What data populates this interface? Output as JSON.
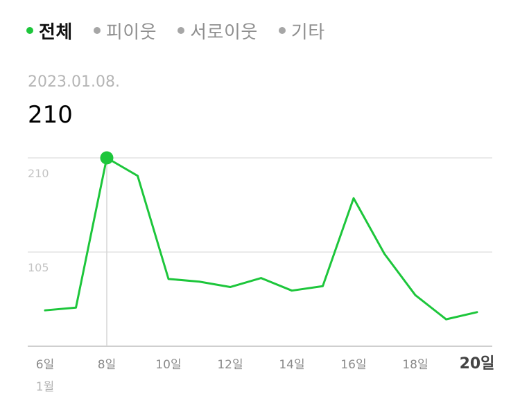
{
  "colors": {
    "accent": "#1dc63b",
    "inactive_dot": "#a6a6a6",
    "gridline": "#e4e4e4",
    "axis": "#cfcfcf",
    "tick_text": "#8a8a8a",
    "y_tick_text": "#c4c4c4",
    "date_text": "#b5b5b5"
  },
  "filters": [
    {
      "label": "전체",
      "active": true
    },
    {
      "label": "피이웃",
      "active": false
    },
    {
      "label": "서로이웃",
      "active": false
    },
    {
      "label": "기타",
      "active": false
    }
  ],
  "selection": {
    "date": "2023.01.08.",
    "value": "210"
  },
  "chart_data": {
    "type": "line",
    "x": [
      6,
      7,
      8,
      9,
      10,
      11,
      12,
      13,
      14,
      15,
      16,
      17,
      18,
      19,
      20
    ],
    "series": [
      {
        "values": [
          40,
          43,
          210,
          190,
          75,
          72,
          66,
          76,
          62,
          67,
          165,
          103,
          57,
          30,
          38
        ]
      }
    ],
    "x_tick_labels": [
      "6일",
      "8일",
      "10일",
      "12일",
      "14일",
      "16일",
      "18일",
      "20일"
    ],
    "x_tick_values": [
      6,
      8,
      10,
      12,
      14,
      16,
      18,
      20
    ],
    "x_sublabel": "1월",
    "highlight_x_label": "20일",
    "y_tick_labels": [
      "210",
      "105"
    ],
    "y_tick_values": [
      210,
      105
    ],
    "ylim": [
      0,
      210
    ],
    "grid": true,
    "selected_index": 2
  }
}
